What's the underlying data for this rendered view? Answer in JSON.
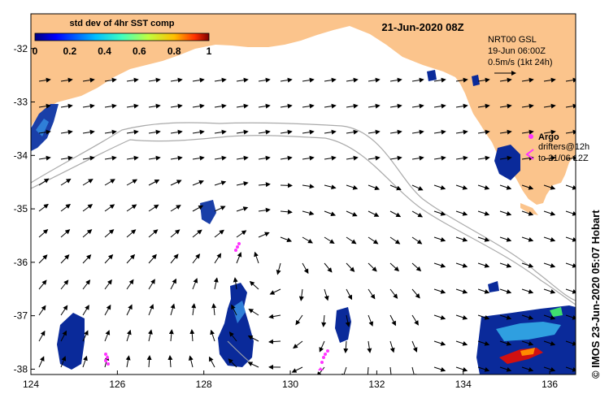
{
  "map": {
    "date_title": "21-Jun-2020 08Z",
    "colorbar": {
      "title": "std dev of 4hr SST comp",
      "ticks": [
        "0",
        "0.2",
        "0.4",
        "0.6",
        "0.8",
        "1"
      ],
      "range": [
        0,
        1
      ]
    },
    "current_info": {
      "line1": "NRT00 GSL",
      "line2": "19-Jun 06:00Z",
      "line3": "0.5m/s (1kt 24h)"
    },
    "argo_legend": {
      "label": "Argo",
      "drifters_line1": "drifters@12h",
      "drifters_line2": "to 21/06 12Z"
    },
    "credit": "© IMOS 23-Jun-2020 05:07 Hobart",
    "lon_ticks": [
      "124",
      "126",
      "128",
      "130",
      "132",
      "134",
      "136"
    ],
    "lat_ticks": [
      "-32",
      "-33",
      "-34",
      "-35",
      "-36",
      "-37",
      "-38"
    ],
    "lon_range": [
      124,
      136.6
    ],
    "lat_range": [
      -38.1,
      -31.35
    ],
    "colors": {
      "land": "#fbc48c",
      "ocean": "#ffffff",
      "argo": "#ff33ff",
      "track": "#aaaaaa",
      "sst_low": "#0a2a9a",
      "sst_high": "#d01010"
    }
  }
}
